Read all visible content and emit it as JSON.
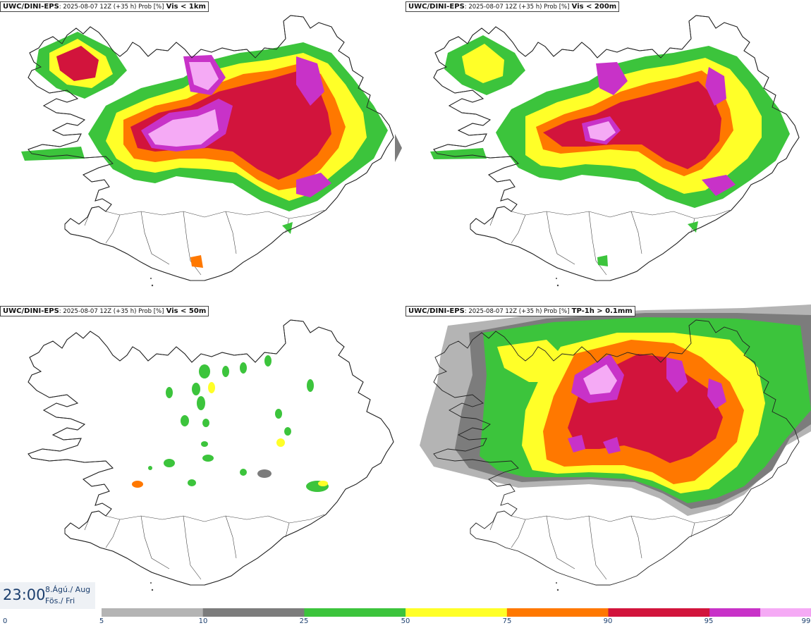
{
  "panels": [
    {
      "model": "UWC/DINI-EPS",
      "meta": ": 2025-08-07 12Z (+35 h) Prob [%]",
      "variable": "Vis < 1km"
    },
    {
      "model": "UWC/DINI-EPS",
      "meta": ": 2025-08-07 12Z (+35 h) Prob [%]",
      "variable": "Vis < 200m"
    },
    {
      "model": "UWC/DINI-EPS",
      "meta": ": 2025-08-07 12Z (+35 h) Prob [%]",
      "variable": "Vis < 50m"
    },
    {
      "model": "UWC/DINI-EPS",
      "meta": ": 2025-08-07 12Z (+35 h) Prob [%]",
      "variable": "TP-1h > 0.1mm"
    }
  ],
  "valid_time": {
    "clock": "23:00",
    "date_line": "8.Ágú./ Aug",
    "day_line": "Fös./ Fri"
  },
  "colorbar": {
    "labels": [
      "0",
      "5",
      "10",
      "25",
      "50",
      "75",
      "90",
      "95",
      "99"
    ],
    "bins": [
      {
        "from": 5,
        "to": 10,
        "color": "#b4b4b4"
      },
      {
        "from": 10,
        "to": 25,
        "color": "#7c7c7c"
      },
      {
        "from": 25,
        "to": 50,
        "color": "#3cc43c"
      },
      {
        "from": 50,
        "to": 75,
        "color": "#ffff28"
      },
      {
        "from": 75,
        "to": 90,
        "color": "#ff7800"
      },
      {
        "from": 90,
        "to": 95,
        "color": "#d2143c"
      },
      {
        "from": 95,
        "to": 99,
        "color": "#c832c8"
      },
      {
        "from": 99,
        "to": 100,
        "color": "#f5aaf5"
      }
    ]
  },
  "map": {
    "region": "Iceland",
    "coastline_color": "#222222"
  }
}
